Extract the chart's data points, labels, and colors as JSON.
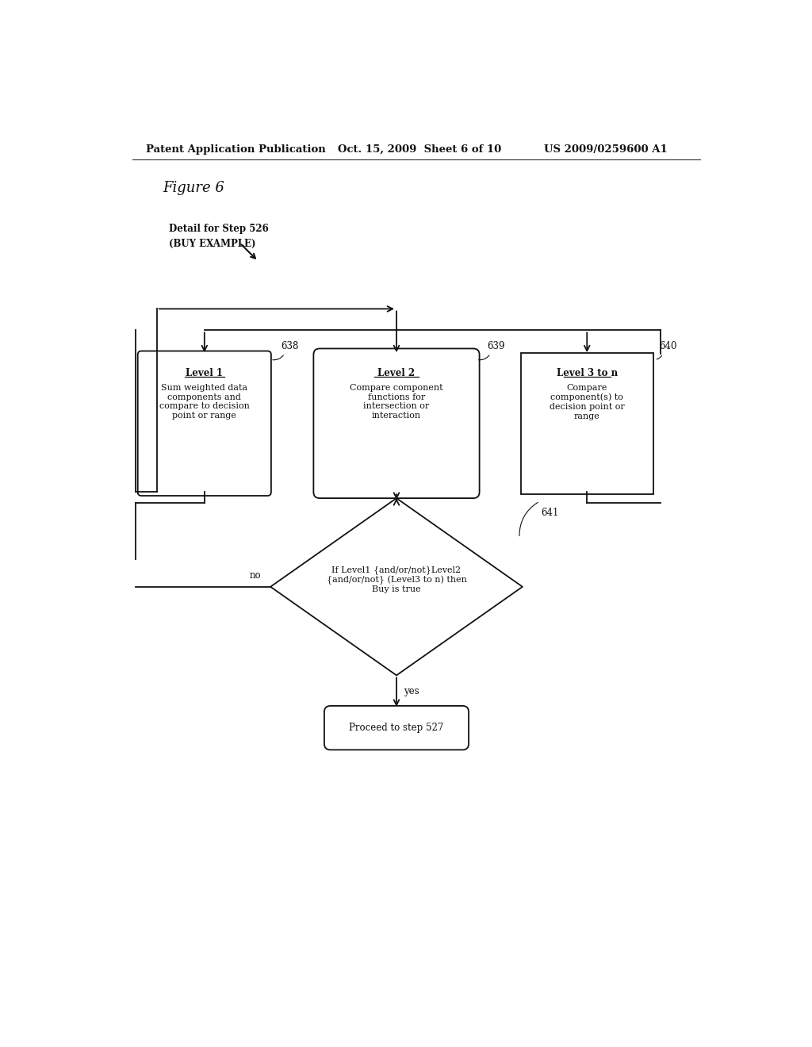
{
  "bg_color": "#ffffff",
  "header_left": "Patent Application Publication",
  "header_mid": "Oct. 15, 2009  Sheet 6 of 10",
  "header_right": "US 2009/0259600 A1",
  "figure_label": "Figure 6",
  "detail_line1": "Detail for Step 526",
  "detail_line2": "(BUY EXAMPLE)",
  "box638_title": "Level 1",
  "box638_body": "Sum weighted data\ncomponents and\ncompare to decision\npoint or range",
  "box638_label": "638",
  "box639_title": "Level 2",
  "box639_body": "Compare component\nfunctions for\nintersection or\ninteraction",
  "box639_label": "639",
  "box640_title": "Level 3 to n",
  "box640_body": "Compare\ncomponent(s) to\ndecision point or\nrange",
  "box640_label": "640",
  "diamond_text": "If Level1 {and/or/not}Level2\n{and/or/not} (Level3 to n) then\nBuy is true",
  "diamond_label": "641",
  "terminal_text": "Proceed to step 527",
  "no_label": "no",
  "yes_label": "yes"
}
